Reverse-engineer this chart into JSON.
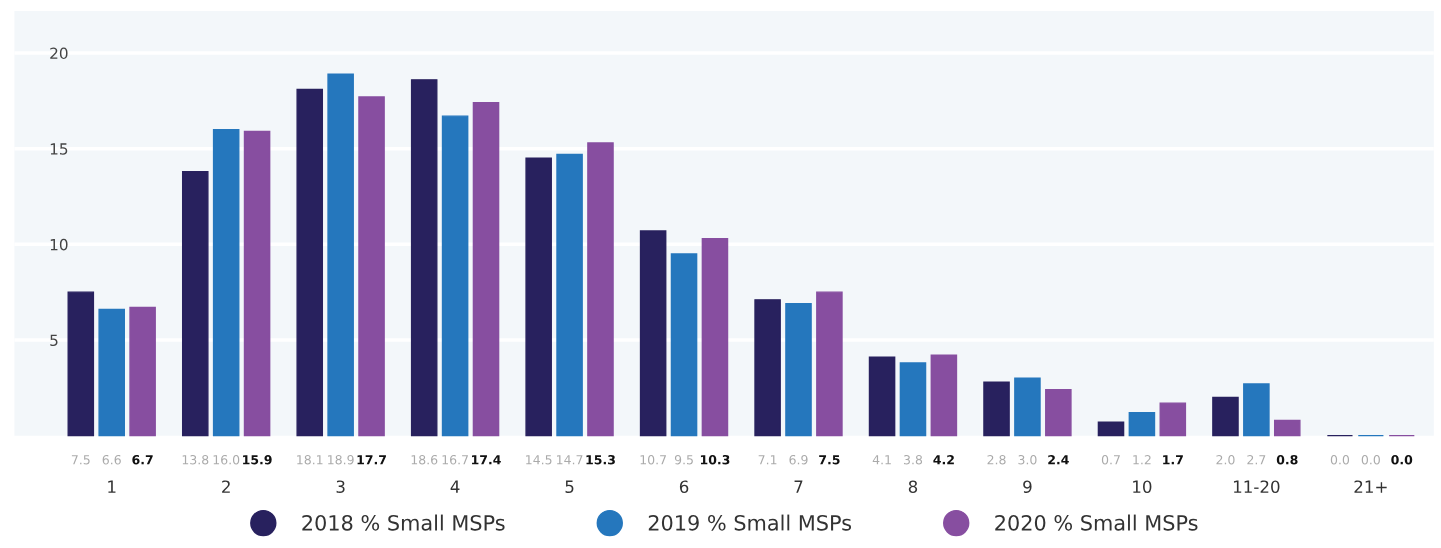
{
  "chart_data": {
    "type": "bar",
    "categories": [
      "1",
      "2",
      "3",
      "4",
      "5",
      "6",
      "7",
      "8",
      "9",
      "10",
      "11-20",
      "21+"
    ],
    "series": [
      {
        "name": "2018 % Small MSPs",
        "color": "#28215e",
        "values": [
          7.5,
          13.8,
          18.1,
          18.6,
          14.5,
          10.7,
          7.1,
          4.1,
          2.8,
          0.7,
          2.0,
          0.0
        ],
        "value_labels": [
          "7.5",
          "13.8",
          "18.1",
          "18.6",
          "14.5",
          "10.7",
          "7.1",
          "4.1",
          "2.8",
          "0.7",
          "2.0",
          "0.0"
        ]
      },
      {
        "name": "2019 % Small MSPs",
        "color": "#2577bd",
        "values": [
          6.6,
          16.0,
          18.9,
          16.7,
          14.7,
          9.5,
          6.9,
          3.8,
          3.0,
          1.2,
          2.7,
          0.0
        ],
        "value_labels": [
          "6.6",
          "16.0",
          "18.9",
          "16.7",
          "14.7",
          "9.5",
          "6.9",
          "3.8",
          "3.0",
          "1.2",
          "2.7",
          "0.0"
        ]
      },
      {
        "name": "2020 % Small MSPs",
        "color": "#874ea0",
        "values": [
          6.7,
          15.9,
          17.7,
          17.4,
          15.3,
          10.3,
          7.5,
          4.2,
          2.4,
          1.7,
          0.8,
          0.0
        ],
        "value_labels": [
          "6.7",
          "15.9",
          "17.7",
          "17.4",
          "15.3",
          "10.3",
          "7.5",
          "4.2",
          "2.4",
          "1.7",
          "0.8",
          "0.0"
        ]
      }
    ],
    "ylim": [
      0,
      22.2
    ],
    "yticks": [
      5,
      10,
      15,
      20
    ],
    "grid": "y",
    "legend": "bottom"
  }
}
